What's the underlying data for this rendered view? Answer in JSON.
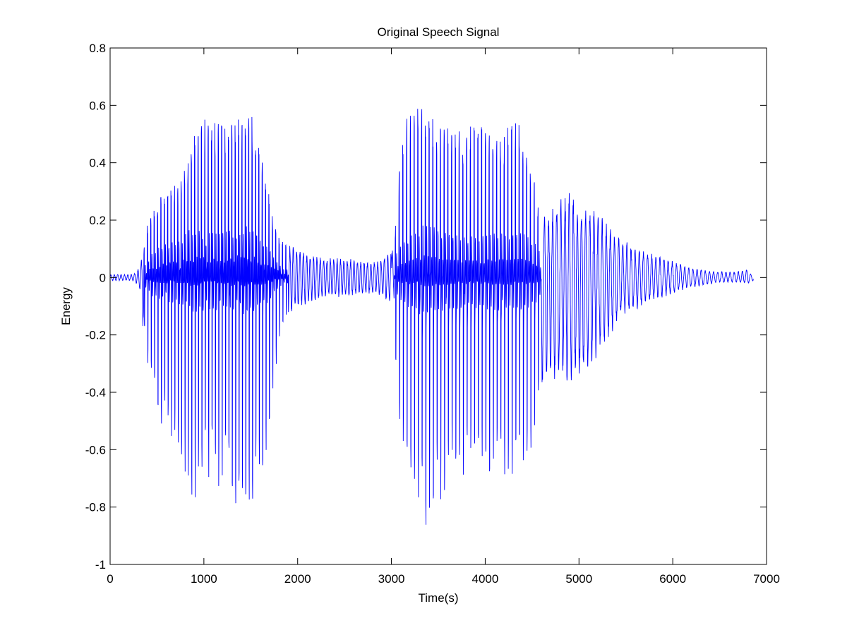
{
  "chart_data": {
    "type": "line",
    "title": "Original Speech Signal",
    "xlabel": "Time(s)",
    "ylabel": "Energy",
    "xlim": [
      0,
      7000
    ],
    "ylim": [
      -1,
      0.8
    ],
    "xticks": [
      0,
      1000,
      2000,
      3000,
      4000,
      5000,
      6000,
      7000
    ],
    "xtick_labels": [
      "0",
      "1000",
      "2000",
      "3000",
      "4000",
      "5000",
      "6000",
      "7000"
    ],
    "yticks": [
      -1,
      -0.8,
      -0.6,
      -0.4,
      -0.2,
      0,
      0.2,
      0.4,
      0.6,
      0.8
    ],
    "ytick_labels": [
      "-1",
      "-0.8",
      "-0.6",
      "-0.4",
      "-0.2",
      "0",
      "0.2",
      "0.4",
      "0.6",
      "0.8"
    ],
    "grid": false,
    "box": true,
    "line_color": "#0000ff",
    "series": [
      {
        "x_start": 0,
        "x_end": 6860,
        "envelope": {
          "x": [
            0,
            250,
            310,
            330,
            360,
            400,
            450,
            550,
            650,
            750,
            850,
            950,
            1050,
            1150,
            1250,
            1350,
            1450,
            1550,
            1650,
            1750,
            1850,
            1950,
            2100,
            2300,
            2500,
            2700,
            2850,
            2950,
            3000,
            3030,
            3060,
            3150,
            3250,
            3350,
            3450,
            3550,
            3650,
            3750,
            3850,
            3950,
            4050,
            4150,
            4250,
            4350,
            4450,
            4550,
            4600,
            4700,
            4800,
            4900,
            5000,
            5100,
            5200,
            5300,
            5400,
            5500,
            5600,
            5700,
            5800,
            5900,
            6000,
            6100,
            6200,
            6300,
            6400,
            6500,
            6600,
            6700,
            6800,
            6860
          ],
          "upper": [
            0.01,
            0.01,
            0.03,
            0.05,
            0.1,
            0.2,
            0.22,
            0.3,
            0.32,
            0.34,
            0.42,
            0.58,
            0.55,
            0.55,
            0.52,
            0.55,
            0.6,
            0.55,
            0.38,
            0.18,
            0.12,
            0.1,
            0.07,
            0.06,
            0.06,
            0.05,
            0.05,
            0.07,
            0.08,
            0.09,
            0.32,
            0.55,
            0.63,
            0.58,
            0.55,
            0.52,
            0.53,
            0.52,
            0.53,
            0.53,
            0.5,
            0.48,
            0.53,
            0.56,
            0.48,
            0.28,
            0.2,
            0.2,
            0.25,
            0.26,
            0.21,
            0.22,
            0.2,
            0.17,
            0.13,
            0.11,
            0.09,
            0.08,
            0.07,
            0.06,
            0.05,
            0.04,
            0.03,
            0.025,
            0.02,
            0.018,
            0.018,
            0.02,
            0.025,
            0.0
          ],
          "lower": [
            -0.01,
            -0.01,
            -0.03,
            -0.06,
            -0.2,
            -0.3,
            -0.42,
            -0.52,
            -0.57,
            -0.6,
            -0.79,
            -0.76,
            -0.73,
            -0.73,
            -0.75,
            -0.8,
            -0.84,
            -0.77,
            -0.65,
            -0.35,
            -0.15,
            -0.1,
            -0.08,
            -0.06,
            -0.06,
            -0.05,
            -0.05,
            -0.07,
            -0.08,
            -0.09,
            -0.45,
            -0.62,
            -0.75,
            -0.88,
            -0.84,
            -0.76,
            -0.7,
            -0.7,
            -0.68,
            -0.68,
            -0.72,
            -0.74,
            -0.75,
            -0.75,
            -0.7,
            -0.55,
            -0.38,
            -0.3,
            -0.33,
            -0.33,
            -0.32,
            -0.28,
            -0.24,
            -0.2,
            -0.14,
            -0.11,
            -0.1,
            -0.08,
            -0.07,
            -0.06,
            -0.05,
            -0.04,
            -0.03,
            -0.025,
            -0.02,
            -0.015,
            -0.015,
            -0.015,
            -0.02,
            -0.01
          ]
        }
      }
    ]
  }
}
